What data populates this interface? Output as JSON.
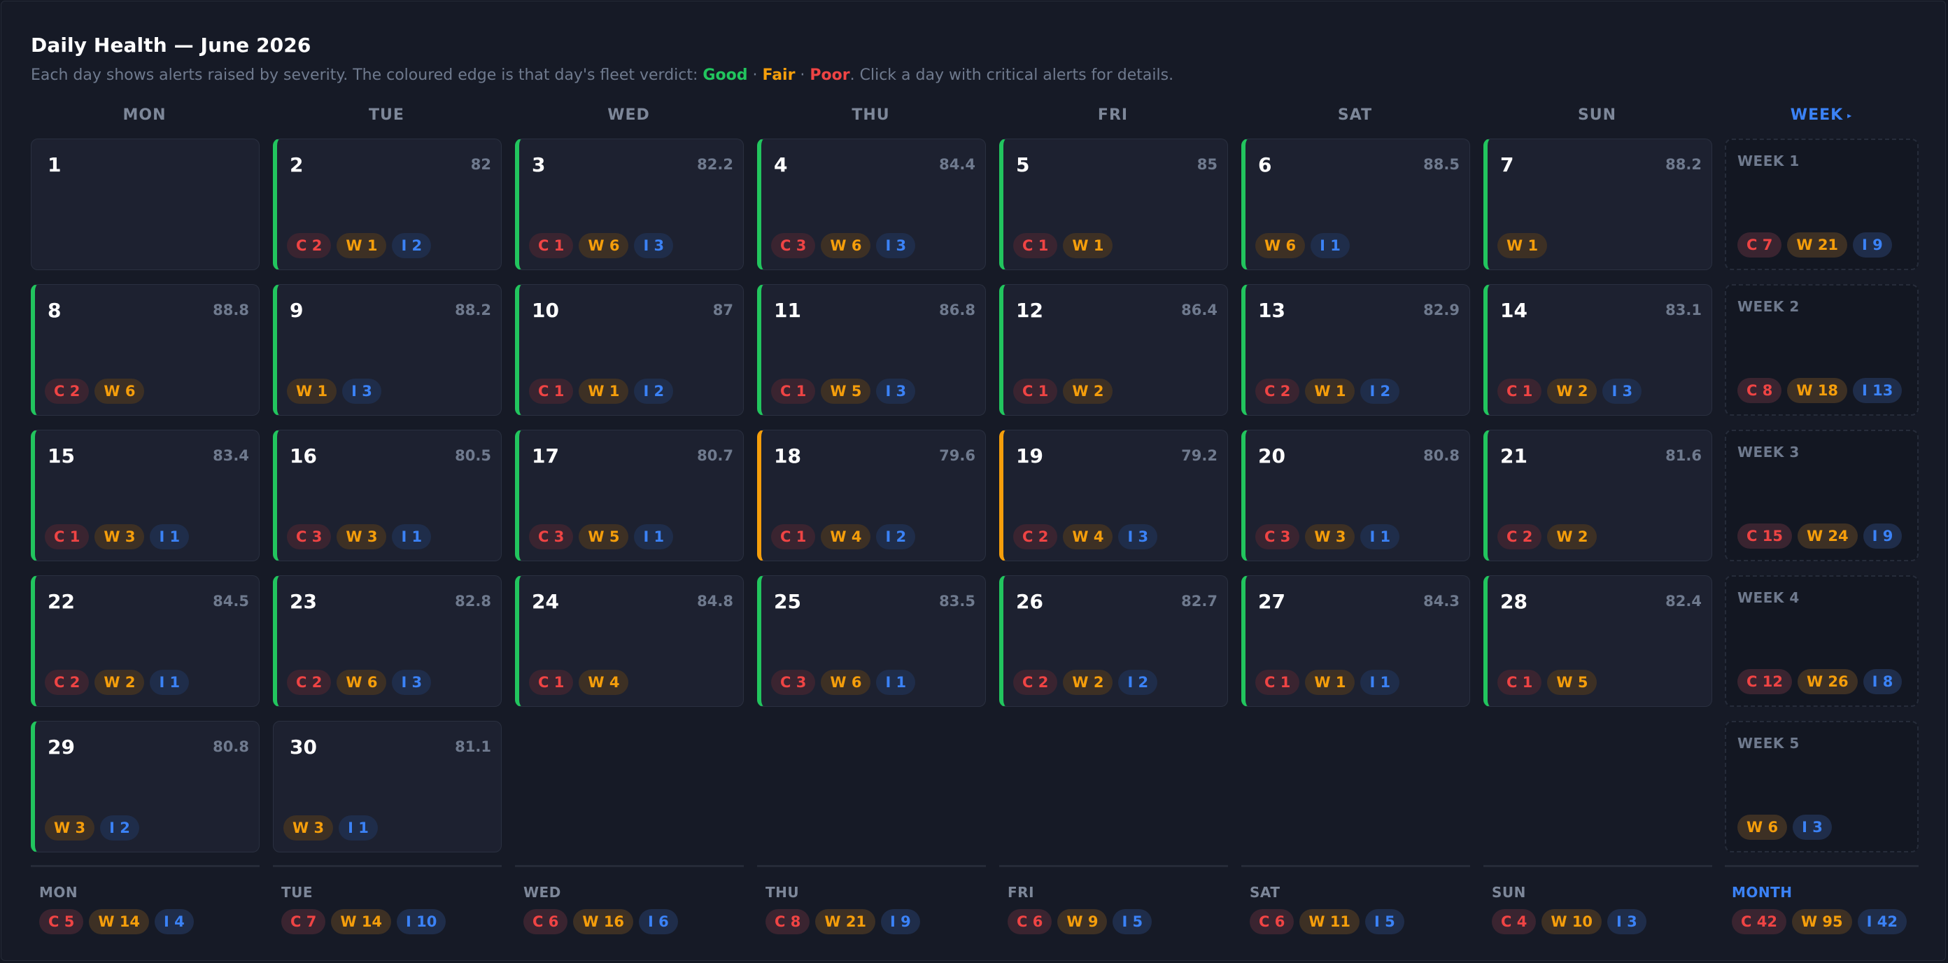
{
  "header": {
    "title": "Daily Health — June 2026",
    "subtitle_pre": "Each day shows alerts raised by severity. The coloured edge is that day's fleet verdict: ",
    "good": "Good",
    "sep1": " · ",
    "fair": "Fair",
    "sep2": " · ",
    "poor": "Poor",
    "subtitle_post": ". Click a day with critical alerts for details."
  },
  "columns": [
    "MON",
    "TUE",
    "WED",
    "THU",
    "FRI",
    "SAT",
    "SUN"
  ],
  "week_column": {
    "label": "WEEK",
    "icon": "triangle-right-icon"
  },
  "colors": {
    "good": "#22c55e",
    "fair": "#f59e0b",
    "poor": "#ef4444",
    "critical": "#ef4444",
    "warning": "#f59e0b",
    "info": "#3b82f6"
  },
  "days": [
    {
      "day": "1",
      "score": "",
      "verdict": "none",
      "chips": []
    },
    {
      "day": "2",
      "score": "82",
      "verdict": "good",
      "chips": [
        {
          "t": "c",
          "label": "C 2"
        },
        {
          "t": "w",
          "label": "W 1"
        },
        {
          "t": "i",
          "label": "I 2"
        }
      ]
    },
    {
      "day": "3",
      "score": "82.2",
      "verdict": "good",
      "chips": [
        {
          "t": "c",
          "label": "C 1"
        },
        {
          "t": "w",
          "label": "W 6"
        },
        {
          "t": "i",
          "label": "I 3"
        }
      ]
    },
    {
      "day": "4",
      "score": "84.4",
      "verdict": "good",
      "chips": [
        {
          "t": "c",
          "label": "C 3"
        },
        {
          "t": "w",
          "label": "W 6"
        },
        {
          "t": "i",
          "label": "I 3"
        }
      ]
    },
    {
      "day": "5",
      "score": "85",
      "verdict": "good",
      "chips": [
        {
          "t": "c",
          "label": "C 1"
        },
        {
          "t": "w",
          "label": "W 1"
        }
      ]
    },
    {
      "day": "6",
      "score": "88.5",
      "verdict": "good",
      "chips": [
        {
          "t": "w",
          "label": "W 6"
        },
        {
          "t": "i",
          "label": "I 1"
        }
      ]
    },
    {
      "day": "7",
      "score": "88.2",
      "verdict": "good",
      "chips": [
        {
          "t": "w",
          "label": "W 1"
        }
      ]
    },
    {
      "day": "8",
      "score": "88.8",
      "verdict": "good",
      "chips": [
        {
          "t": "c",
          "label": "C 2"
        },
        {
          "t": "w",
          "label": "W 6"
        }
      ]
    },
    {
      "day": "9",
      "score": "88.2",
      "verdict": "good",
      "chips": [
        {
          "t": "w",
          "label": "W 1"
        },
        {
          "t": "i",
          "label": "I 3"
        }
      ]
    },
    {
      "day": "10",
      "score": "87",
      "verdict": "good",
      "chips": [
        {
          "t": "c",
          "label": "C 1"
        },
        {
          "t": "w",
          "label": "W 1"
        },
        {
          "t": "i",
          "label": "I 2"
        }
      ]
    },
    {
      "day": "11",
      "score": "86.8",
      "verdict": "good",
      "chips": [
        {
          "t": "c",
          "label": "C 1"
        },
        {
          "t": "w",
          "label": "W 5"
        },
        {
          "t": "i",
          "label": "I 3"
        }
      ]
    },
    {
      "day": "12",
      "score": "86.4",
      "verdict": "good",
      "chips": [
        {
          "t": "c",
          "label": "C 1"
        },
        {
          "t": "w",
          "label": "W 2"
        }
      ]
    },
    {
      "day": "13",
      "score": "82.9",
      "verdict": "good",
      "chips": [
        {
          "t": "c",
          "label": "C 2"
        },
        {
          "t": "w",
          "label": "W 1"
        },
        {
          "t": "i",
          "label": "I 2"
        }
      ]
    },
    {
      "day": "14",
      "score": "83.1",
      "verdict": "good",
      "chips": [
        {
          "t": "c",
          "label": "C 1"
        },
        {
          "t": "w",
          "label": "W 2"
        },
        {
          "t": "i",
          "label": "I 3"
        }
      ]
    },
    {
      "day": "15",
      "score": "83.4",
      "verdict": "good",
      "chips": [
        {
          "t": "c",
          "label": "C 1"
        },
        {
          "t": "w",
          "label": "W 3"
        },
        {
          "t": "i",
          "label": "I 1"
        }
      ]
    },
    {
      "day": "16",
      "score": "80.5",
      "verdict": "good",
      "chips": [
        {
          "t": "c",
          "label": "C 3"
        },
        {
          "t": "w",
          "label": "W 3"
        },
        {
          "t": "i",
          "label": "I 1"
        }
      ]
    },
    {
      "day": "17",
      "score": "80.7",
      "verdict": "good",
      "chips": [
        {
          "t": "c",
          "label": "C 3"
        },
        {
          "t": "w",
          "label": "W 5"
        },
        {
          "t": "i",
          "label": "I 1"
        }
      ]
    },
    {
      "day": "18",
      "score": "79.6",
      "verdict": "fair",
      "chips": [
        {
          "t": "c",
          "label": "C 1"
        },
        {
          "t": "w",
          "label": "W 4"
        },
        {
          "t": "i",
          "label": "I 2"
        }
      ]
    },
    {
      "day": "19",
      "score": "79.2",
      "verdict": "fair",
      "chips": [
        {
          "t": "c",
          "label": "C 2"
        },
        {
          "t": "w",
          "label": "W 4"
        },
        {
          "t": "i",
          "label": "I 3"
        }
      ]
    },
    {
      "day": "20",
      "score": "80.8",
      "verdict": "good",
      "chips": [
        {
          "t": "c",
          "label": "C 3"
        },
        {
          "t": "w",
          "label": "W 3"
        },
        {
          "t": "i",
          "label": "I 1"
        }
      ]
    },
    {
      "day": "21",
      "score": "81.6",
      "verdict": "good",
      "chips": [
        {
          "t": "c",
          "label": "C 2"
        },
        {
          "t": "w",
          "label": "W 2"
        }
      ]
    },
    {
      "day": "22",
      "score": "84.5",
      "verdict": "good",
      "chips": [
        {
          "t": "c",
          "label": "C 2"
        },
        {
          "t": "w",
          "label": "W 2"
        },
        {
          "t": "i",
          "label": "I 1"
        }
      ]
    },
    {
      "day": "23",
      "score": "82.8",
      "verdict": "good",
      "chips": [
        {
          "t": "c",
          "label": "C 2"
        },
        {
          "t": "w",
          "label": "W 6"
        },
        {
          "t": "i",
          "label": "I 3"
        }
      ]
    },
    {
      "day": "24",
      "score": "84.8",
      "verdict": "good",
      "chips": [
        {
          "t": "c",
          "label": "C 1"
        },
        {
          "t": "w",
          "label": "W 4"
        }
      ]
    },
    {
      "day": "25",
      "score": "83.5",
      "verdict": "good",
      "chips": [
        {
          "t": "c",
          "label": "C 3"
        },
        {
          "t": "w",
          "label": "W 6"
        },
        {
          "t": "i",
          "label": "I 1"
        }
      ]
    },
    {
      "day": "26",
      "score": "82.7",
      "verdict": "good",
      "chips": [
        {
          "t": "c",
          "label": "C 2"
        },
        {
          "t": "w",
          "label": "W 2"
        },
        {
          "t": "i",
          "label": "I 2"
        }
      ]
    },
    {
      "day": "27",
      "score": "84.3",
      "verdict": "good",
      "chips": [
        {
          "t": "c",
          "label": "C 1"
        },
        {
          "t": "w",
          "label": "W 1"
        },
        {
          "t": "i",
          "label": "I 1"
        }
      ]
    },
    {
      "day": "28",
      "score": "82.4",
      "verdict": "good",
      "chips": [
        {
          "t": "c",
          "label": "C 1"
        },
        {
          "t": "w",
          "label": "W 5"
        }
      ]
    },
    {
      "day": "29",
      "score": "80.8",
      "verdict": "good",
      "chips": [
        {
          "t": "w",
          "label": "W 3"
        },
        {
          "t": "i",
          "label": "I 2"
        }
      ]
    },
    {
      "day": "30",
      "score": "81.1",
      "verdict": "none",
      "chips": [
        {
          "t": "w",
          "label": "W 3"
        },
        {
          "t": "i",
          "label": "I 1"
        }
      ]
    }
  ],
  "weeks": [
    {
      "label": "WEEK 1",
      "chips": [
        {
          "t": "c",
          "label": "C 7"
        },
        {
          "t": "w",
          "label": "W 21"
        },
        {
          "t": "i",
          "label": "I 9"
        }
      ]
    },
    {
      "label": "WEEK 2",
      "chips": [
        {
          "t": "c",
          "label": "C 8"
        },
        {
          "t": "w",
          "label": "W 18"
        },
        {
          "t": "i",
          "label": "I 13"
        }
      ]
    },
    {
      "label": "WEEK 3",
      "chips": [
        {
          "t": "c",
          "label": "C 15"
        },
        {
          "t": "w",
          "label": "W 24"
        },
        {
          "t": "i",
          "label": "I 9"
        }
      ]
    },
    {
      "label": "WEEK 4",
      "chips": [
        {
          "t": "c",
          "label": "C 12"
        },
        {
          "t": "w",
          "label": "W 26"
        },
        {
          "t": "i",
          "label": "I 8"
        }
      ]
    },
    {
      "label": "WEEK 5",
      "chips": [
        {
          "t": "w",
          "label": "W 6"
        },
        {
          "t": "i",
          "label": "I 3"
        }
      ]
    }
  ],
  "footer": [
    {
      "label": "MON",
      "chips": [
        {
          "t": "c",
          "label": "C 5"
        },
        {
          "t": "w",
          "label": "W 14"
        },
        {
          "t": "i",
          "label": "I 4"
        }
      ]
    },
    {
      "label": "TUE",
      "chips": [
        {
          "t": "c",
          "label": "C 7"
        },
        {
          "t": "w",
          "label": "W 14"
        },
        {
          "t": "i",
          "label": "I 10"
        }
      ]
    },
    {
      "label": "WED",
      "chips": [
        {
          "t": "c",
          "label": "C 6"
        },
        {
          "t": "w",
          "label": "W 16"
        },
        {
          "t": "i",
          "label": "I 6"
        }
      ]
    },
    {
      "label": "THU",
      "chips": [
        {
          "t": "c",
          "label": "C 8"
        },
        {
          "t": "w",
          "label": "W 21"
        },
        {
          "t": "i",
          "label": "I 9"
        }
      ]
    },
    {
      "label": "FRI",
      "chips": [
        {
          "t": "c",
          "label": "C 6"
        },
        {
          "t": "w",
          "label": "W 9"
        },
        {
          "t": "i",
          "label": "I 5"
        }
      ]
    },
    {
      "label": "SAT",
      "chips": [
        {
          "t": "c",
          "label": "C 6"
        },
        {
          "t": "w",
          "label": "W 11"
        },
        {
          "t": "i",
          "label": "I 5"
        }
      ]
    },
    {
      "label": "SUN",
      "chips": [
        {
          "t": "c",
          "label": "C 4"
        },
        {
          "t": "w",
          "label": "W 10"
        },
        {
          "t": "i",
          "label": "I 3"
        }
      ]
    }
  ],
  "month": {
    "label": "MONTH",
    "chips": [
      {
        "t": "c",
        "label": "C 42"
      },
      {
        "t": "w",
        "label": "W 95"
      },
      {
        "t": "i",
        "label": "I 42"
      }
    ]
  }
}
